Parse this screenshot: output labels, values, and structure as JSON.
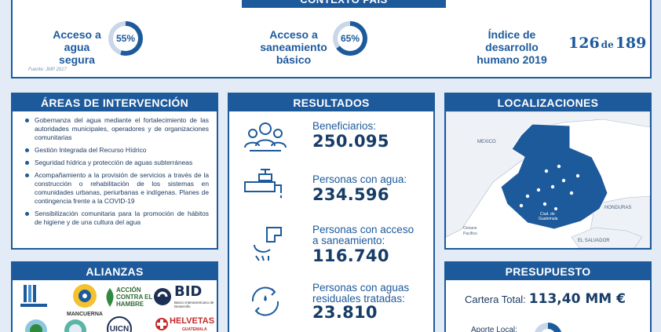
{
  "context": {
    "title": "CONTEXTO PAÍS",
    "water": {
      "label_lines": [
        "Acceso a",
        "agua",
        "segura"
      ],
      "value": "55%",
      "fraction": 0.55
    },
    "sanitation": {
      "label_lines": [
        "Acceso a",
        "saneamiento",
        "básico"
      ],
      "value": "65%",
      "fraction": 0.65
    },
    "hdi": {
      "label_lines": [
        "Índice de",
        "desarrollo",
        "humano 2019"
      ],
      "rank": "126",
      "de": "de",
      "total": "189"
    },
    "source": "Fuente: JMP 2017"
  },
  "areas": {
    "title": "ÁREAS DE INTERVENCIÓN",
    "items": [
      "Gobernanza del agua mediante el fortalecimiento de las autoridades municipales, operadores y de organizaciones comunitarias",
      "Gestión Integrada del Recurso Hídrico",
      "Seguridad hídrica y protección de aguas subterráneas",
      "Acompañamiento a la provisión de servicios a través de la construcción o rehabilitación de los sistemas en comunidades urbanas, periurbanas e indígenas. Planes de contingencia frente a la COVID-19",
      "Sensibilización comunitaria para la promoción de hábitos de higiene y de una cultura del agua"
    ]
  },
  "alianzas": {
    "title": "ALIANZAS",
    "logos": [
      "MANCUERNA",
      "ACCIÓN CONTRA EL HAMBRE",
      "BID",
      "Banco Interamericano de Desarrollo",
      "UICN",
      "HELVETAS",
      "GUATEMALA"
    ]
  },
  "resultados": {
    "title": "RESULTADOS",
    "items": [
      {
        "label_lines": [
          "Beneficiarios:"
        ],
        "value": "250.095",
        "icon": "people-icon"
      },
      {
        "label_lines": [
          "Personas con agua:"
        ],
        "value": "234.596",
        "icon": "faucet-icon"
      },
      {
        "label_lines": [
          "Personas con acceso",
          "a saneamiento:"
        ],
        "value": "116.740",
        "icon": "pipe-icon"
      },
      {
        "label_lines": [
          "Personas con aguas",
          "residuales tratadas:"
        ],
        "value": "23.810",
        "icon": "water-cycle-icon"
      }
    ]
  },
  "localizaciones": {
    "title": "LOCALIZACIONES",
    "map_labels": {
      "mexico": "MEXICO",
      "honduras": "HONDURAS",
      "salvador": "EL SALVADOR",
      "ocean_lines": [
        "Océano",
        "Pacífico"
      ],
      "capital_lines": [
        "Ciud. de",
        "Guatemala"
      ]
    }
  },
  "presupuesto": {
    "title": "PRESUPUESTO",
    "total_label": "Cartera Total:",
    "total_value": "113,40 MM €",
    "aporte_label": "Aporte Local:"
  },
  "colors": {
    "primary": "#1d5a9c",
    "background": "#e3ecf6",
    "ring_track": "#c9d7e8"
  }
}
